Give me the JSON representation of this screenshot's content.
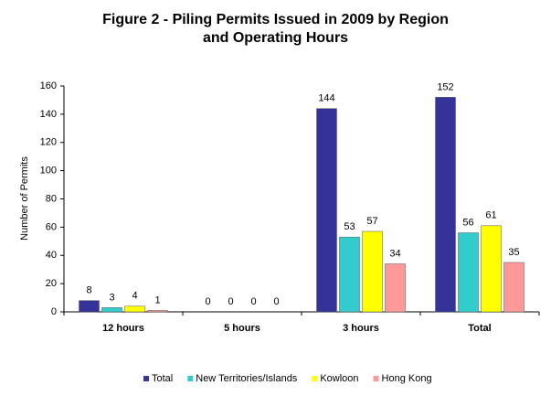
{
  "chart_data": {
    "type": "bar",
    "title": "Figure 2 - Piling Permits Issued in 2009 by Region and Operating Hours",
    "y_label": "Number of Permits",
    "categories": [
      "12 hours",
      "5 hours",
      "3 hours",
      "Total"
    ],
    "series": [
      {
        "name": "Total",
        "color": "#333399",
        "values": [
          8,
          0,
          144,
          152
        ]
      },
      {
        "name": "New Territories/Islands",
        "color": "#33cccc",
        "values": [
          3,
          0,
          53,
          56
        ]
      },
      {
        "name": "Kowloon",
        "color": "#ffff00",
        "values": [
          4,
          0,
          57,
          61
        ]
      },
      {
        "name": "Hong Kong",
        "color": "#ff9999",
        "values": [
          1,
          0,
          34,
          35
        ]
      }
    ],
    "ylim": [
      0,
      160
    ],
    "yticks": [
      0,
      20,
      40,
      60,
      80,
      100,
      120,
      140,
      160
    ],
    "grid": false,
    "legend": "bottom"
  }
}
